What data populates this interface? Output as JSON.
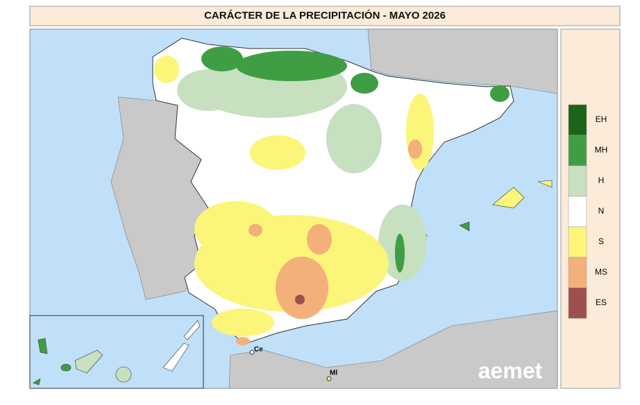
{
  "header": {
    "title": "CARÁCTER DE LA PRECIPITACIÓN - MAYO 2026"
  },
  "legend": {
    "items": [
      {
        "label": "EH",
        "color": "#1b6419"
      },
      {
        "label": "MH",
        "color": "#3f9e44"
      },
      {
        "label": "H",
        "color": "#c7e0c0"
      },
      {
        "label": "N",
        "color": "#ffffff"
      },
      {
        "label": "S",
        "color": "#fbf57a"
      },
      {
        "label": "MS",
        "color": "#f3b07a"
      },
      {
        "label": "ES",
        "color": "#9e4f4f"
      }
    ]
  },
  "map": {
    "places": [
      "Ce",
      "Ml"
    ]
  },
  "logo": "aemet"
}
